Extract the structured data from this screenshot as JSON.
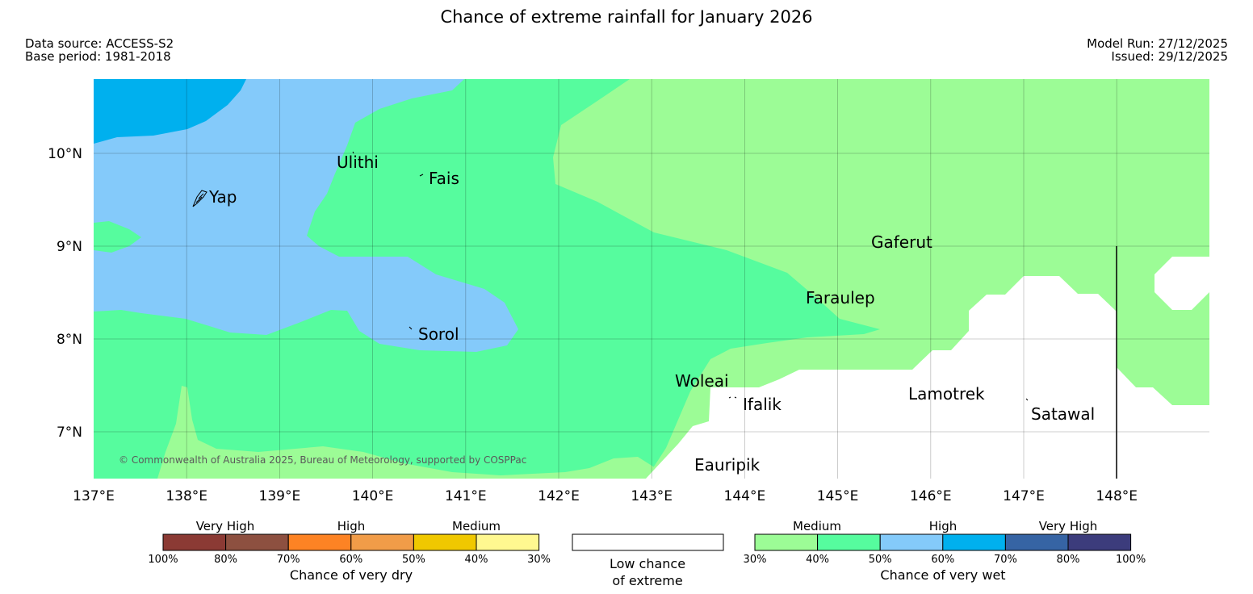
{
  "title": "Chance of extreme rainfall for January 2026",
  "data_source": "Data source: ACCESS-S2",
  "base_period": "Base period: 1981-2018",
  "model_run": "Model Run: 27/12/2025",
  "issued": "Issued: 29/12/2025",
  "copyright": "© Commonwealth of Australia 2025, Bureau of Meteorology, supported by COSPPac",
  "lat_ticks": [
    "10°N",
    "9°N",
    "8°N",
    "7°N"
  ],
  "lon_ticks": [
    "137°E",
    "138°E",
    "139°E",
    "140°E",
    "141°E",
    "142°E",
    "143°E",
    "144°E",
    "145°E",
    "146°E",
    "147°E",
    "148°E"
  ],
  "places": [
    "Ulithi",
    "Fais",
    "Yap",
    "Gaferut",
    "Faraulep",
    "Sorol",
    "Woleai",
    "Ifalik",
    "Lamotrek",
    "Satawal",
    "Eauripik"
  ],
  "colors": {
    "dry_very_high_1": "#8b3a34",
    "dry_very_high_2": "#8d5040",
    "dry_high_1": "#fd8324",
    "dry_high_2": "#f19c48",
    "dry_medium_1": "#f0c800",
    "dry_medium_2": "#fff890",
    "wet_medium_1": "#9cfc96",
    "wet_medium_2": "#56fc9e",
    "wet_high_1": "#84cafa",
    "wet_high_2": "#00b0ee",
    "wet_very_high_1": "#3664a4",
    "wet_very_high_2": "#3c3c7c",
    "low": "#ffffff"
  },
  "legend": {
    "dry": {
      "categories": [
        "Very High",
        "High",
        "Medium"
      ],
      "ticks": [
        "100%",
        "80%",
        "70%",
        "60%",
        "50%",
        "40%",
        "30%"
      ],
      "title": "Chance of very dry"
    },
    "low": {
      "line1": "Low chance",
      "line2": "of extreme"
    },
    "wet": {
      "categories": [
        "Medium",
        "High",
        "Very High"
      ],
      "ticks": [
        "30%",
        "40%",
        "50%",
        "60%",
        "70%",
        "80%",
        "100%"
      ],
      "title": "Chance of very wet"
    }
  }
}
